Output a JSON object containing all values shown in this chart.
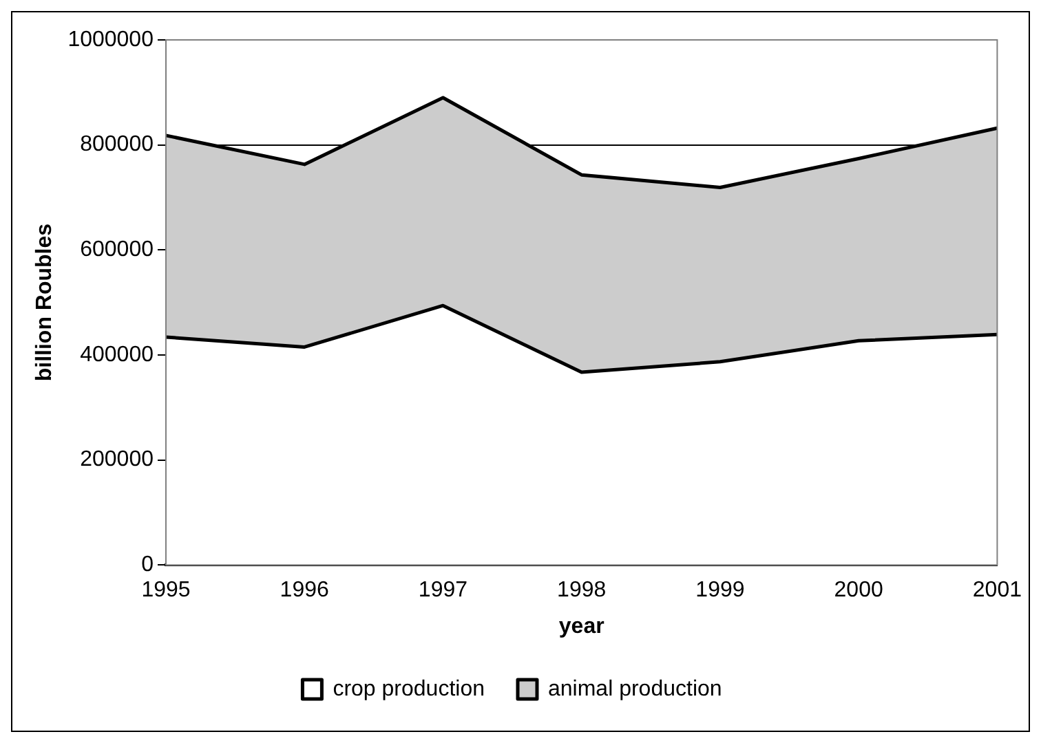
{
  "chart_data": {
    "type": "area",
    "stacked": true,
    "xlabel": "year",
    "ylabel": "billion Roubles",
    "categories": [
      "1995",
      "1996",
      "1997",
      "1998",
      "1999",
      "2000",
      "2001"
    ],
    "series": [
      {
        "name": "crop production",
        "color": "#ffffff",
        "values": [
          434000,
          415000,
          494000,
          367000,
          387000,
          427000,
          439000
        ]
      },
      {
        "name": "animal production",
        "color": "#cccccc",
        "values": [
          384000,
          348000,
          396000,
          376000,
          332000,
          347000,
          393000
        ]
      }
    ],
    "ylim": [
      0,
      1000000
    ],
    "yticks": [
      0,
      200000,
      400000,
      600000,
      800000,
      1000000
    ],
    "grid": "y",
    "legend": "bottom"
  }
}
